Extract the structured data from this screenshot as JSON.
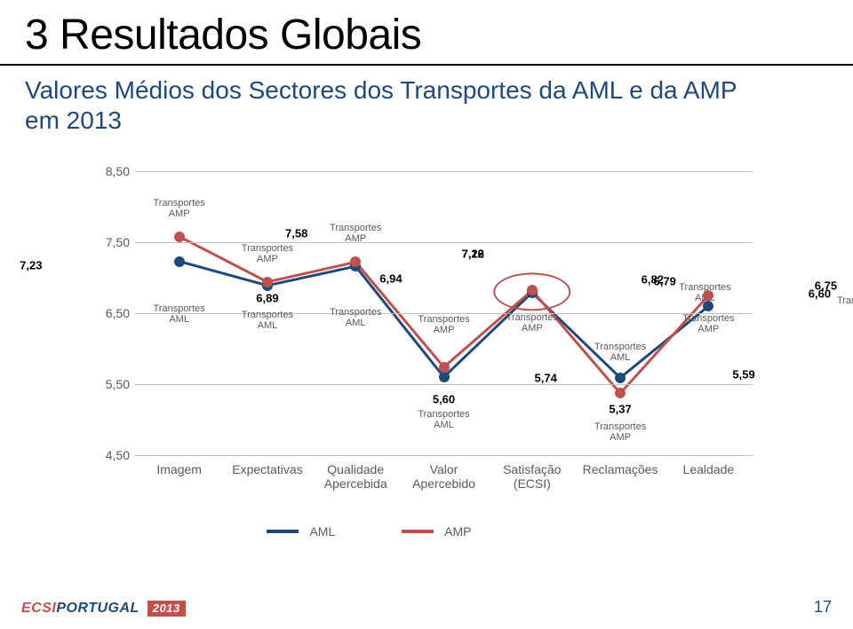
{
  "title": "3 Resultados Globais",
  "subtitle": "Valores Médios dos Sectores dos Transportes da AML e da AMP em 2013",
  "footer": {
    "logo_a": "ECSI",
    "logo_b": "PORTUGAL",
    "year": "2013",
    "page": "17"
  },
  "chart": {
    "type": "line",
    "background_color": "#ffffff",
    "grid_color": "#bfbfbf",
    "tick_color": "#595959",
    "tick_fontsize": 14,
    "datalabel_fontsize": 13,
    "serieslabel_fontsize": 11,
    "line_width": 3,
    "marker_size": 12,
    "ylim": [
      4.5,
      8.5
    ],
    "yticks": [
      4.5,
      5.5,
      6.5,
      7.5,
      8.5
    ],
    "ytick_labels": [
      "4,50",
      "5,50",
      "6,50",
      "7,50",
      "8,50"
    ],
    "categories": [
      "Imagem",
      "Expectativas",
      "Qualidade\nApercebida",
      "Valor\nApercebido",
      "Satisfação\n(ECSI)",
      "Reclamações",
      "Lealdade"
    ],
    "legend": [
      {
        "label": "AML",
        "color": "#1f497d"
      },
      {
        "label": "AMP",
        "color": "#c0504d"
      }
    ],
    "series": [
      {
        "name": "AML",
        "color": "#1f497d",
        "values": [
          7.23,
          6.89,
          7.16,
          5.6,
          6.79,
          5.59,
          6.6
        ],
        "value_labels": [
          "7,23",
          "6,89",
          "7,16",
          "5,60",
          "6,79",
          "5,59",
          "6,60"
        ],
        "value_label_offsets": [
          {
            "dxp": -0.24,
            "dy": -0.06
          },
          {
            "dxp": 0.0,
            "dy": -0.18
          },
          {
            "dxp": 0.19,
            "dy": 0.18
          },
          {
            "dxp": 0.0,
            "dy": -0.31
          },
          {
            "dxp": 0.215,
            "dy": 0.16
          },
          {
            "dxp": 0.2,
            "dy": 0.05
          },
          {
            "dxp": 0.18,
            "dy": 0.17
          }
        ],
        "series_labels": [
          {
            "text": "Transportes\nAML",
            "dxp": 0.0,
            "dy": -0.74
          },
          {
            "text": "Transportes\nAML",
            "dxp": 0.0,
            "dy": -0.49
          },
          {
            "text": "Transportes\nAML",
            "dxp": 0.0,
            "dy": -0.72
          },
          {
            "text": "Transportes\nAML",
            "dxp": 0.0,
            "dy": -0.6
          },
          {
            "text": "Transportes\nAML",
            "dxp": 0.28,
            "dy": 0.0
          },
          {
            "text": "Transportes\nAML",
            "dxp": 0.0,
            "dy": 0.36
          },
          {
            "text": "Transportes\nAML",
            "dxp": 0.25,
            "dy": 0.0
          }
        ]
      },
      {
        "name": "AMP",
        "color": "#c0504d",
        "values": [
          7.58,
          6.94,
          7.22,
          5.74,
          6.82,
          5.37,
          6.75
        ],
        "value_labels": [
          "7,58",
          "6,94",
          "7,22",
          "5,74",
          "6,82",
          "5,37",
          "6,75"
        ],
        "value_label_offsets": [
          {
            "dxp": 0.19,
            "dy": 0.04
          },
          {
            "dxp": 0.2,
            "dy": 0.05
          },
          {
            "dxp": 0.19,
            "dy": 0.12
          },
          {
            "dxp": 0.165,
            "dy": -0.15
          },
          {
            "dxp": 0.195,
            "dy": 0.15
          },
          {
            "dxp": 0.0,
            "dy": -0.22
          },
          {
            "dxp": 0.19,
            "dy": 0.14
          }
        ],
        "series_labels": [
          {
            "text": "Transportes\nAMP",
            "dxp": 0.0,
            "dy": 0.4
          },
          {
            "text": "Transportes\nAMP",
            "dxp": 0.0,
            "dy": 0.4
          },
          {
            "text": "Transportes\nAMP",
            "dxp": 0.0,
            "dy": 0.4
          },
          {
            "text": "Transportes\nAMP",
            "dxp": 0.0,
            "dy": 0.6
          },
          {
            "text": "Transportes\nAMP",
            "dxp": 0.0,
            "dy": -0.46
          },
          {
            "text": "Transportes\nAMP",
            "dxp": 0.0,
            "dy": -0.55
          },
          {
            "text": "Transportes\nAMP",
            "dxp": 0.0,
            "dy": -0.4
          }
        ]
      }
    ],
    "highlights": [
      {
        "category_index": 4,
        "y_center": 6.805,
        "rx_p": 0.063,
        "ry_v": 0.27,
        "color": "#c0504d"
      }
    ]
  }
}
